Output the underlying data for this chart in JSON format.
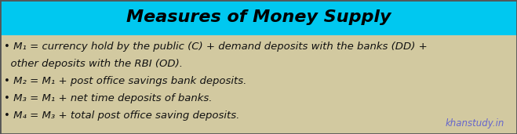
{
  "title": "Measures of Money Supply",
  "title_bg_color": "#00C8F0",
  "title_text_color": "#000000",
  "body_bg_color": "#D2C9A0",
  "border_color": "#555555",
  "bullet_lines": [
    "• M₁ = currency hold by the public (C) + demand deposits with the banks (DD) +",
    "  other deposits with the RBI (OD).",
    "• M₂ = M₁ + post office savings bank deposits.",
    "• M₃ = M₁ + net time deposits of banks.",
    "• M₄ = M₃ + total post office saving deposits."
  ],
  "watermark": "khanstudy.in",
  "watermark_color": "#6666CC",
  "title_fontsize": 16,
  "body_fontsize": 9.5,
  "watermark_fontsize": 8.5,
  "fig_width": 6.59,
  "fig_height": 1.71,
  "dpi": 100
}
